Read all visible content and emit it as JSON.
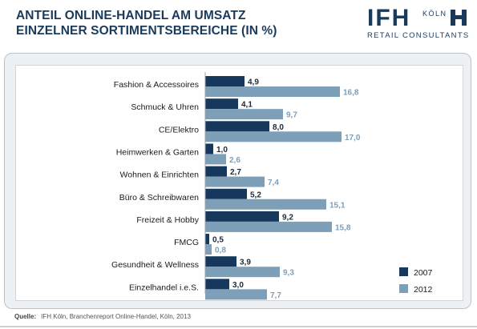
{
  "header": {
    "title_line1": "ANTEIL ONLINE-HANDEL AM UMSATZ",
    "title_line2": "EINZELNER SORTIMENTSBEREICHE (IN %)"
  },
  "logo": {
    "word": "IFH",
    "city": "KÖLN",
    "subtitle": "RETAIL CONSULTANTS"
  },
  "source": {
    "label": "Quelle:",
    "text": "IFH Köln, Branchenreport Online-Handel, Köln, 2013"
  },
  "colors": {
    "series_2007": "#15385c",
    "series_2012": "#7d9fb8",
    "label_2007": "#1a2a3a",
    "label_2012": "#7d9fb8",
    "title": "#1a3a5c"
  },
  "chart_data": {
    "type": "bar",
    "orientation": "horizontal",
    "categories": [
      "Fashion & Accessoires",
      "Schmuck & Uhren",
      "CE/Elektro",
      "Heimwerken & Garten",
      "Wohnen & Einrichten",
      "Büro & Schreibwaren",
      "Freizeit & Hobby",
      "FMCG",
      "Gesundheit & Wellness",
      "Einzelhandel i.e.S."
    ],
    "series": [
      {
        "name": "2007",
        "values": [
          4.9,
          4.1,
          8.0,
          1.0,
          2.7,
          5.2,
          9.2,
          0.5,
          3.9,
          3.0
        ],
        "labels": [
          "4,9",
          "4,1",
          "8,0",
          "1,0",
          "2,7",
          "5,2",
          "9,2",
          "0,5",
          "3,9",
          "3,0"
        ]
      },
      {
        "name": "2012",
        "values": [
          16.8,
          9.7,
          17.0,
          2.6,
          7.4,
          15.1,
          15.8,
          0.8,
          9.3,
          7.7
        ],
        "labels": [
          "16,8",
          "9,7",
          "17,0",
          "2,6",
          "7,4",
          "15,1",
          "15,8",
          "0,8",
          "9,3",
          "7,7"
        ]
      }
    ],
    "legend_position": "bottom-right",
    "grid": false
  }
}
